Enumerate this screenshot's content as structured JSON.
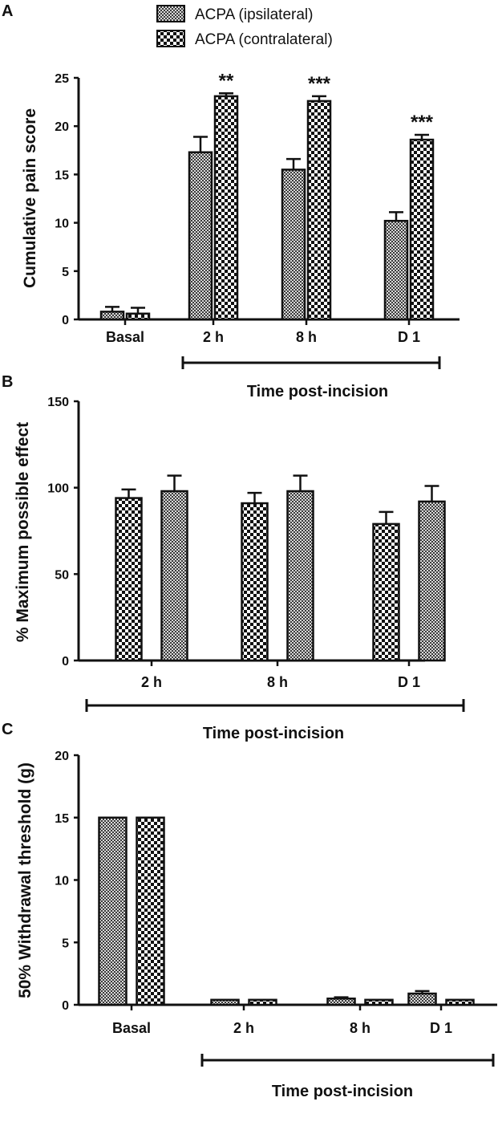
{
  "colors": {
    "ipsilateral_fill": "#8a8a8a",
    "contralateral_fill": "#2a2a2a",
    "bar_outline": "#111111",
    "axis": "#111111"
  },
  "chart_data": [
    {
      "panel": "A",
      "type": "bar",
      "categories": [
        "Basal",
        "2 h",
        "8 h",
        "D 1"
      ],
      "series": [
        {
          "name": "ACPA (ipsilateral)",
          "pattern": "fine-check",
          "values": [
            0.8,
            17.3,
            15.5,
            10.2
          ],
          "errors": [
            0.5,
            1.6,
            1.1,
            0.9
          ]
        },
        {
          "name": "ACPA (contralateral)",
          "pattern": "coarse-check",
          "values": [
            0.6,
            23.1,
            22.6,
            18.6
          ],
          "errors": [
            0.6,
            0.3,
            0.5,
            0.5
          ]
        }
      ],
      "significance": [
        "",
        "**",
        "***",
        "***"
      ],
      "ylabel": "Cumulative pain score",
      "xlabel": "Time post-incision",
      "ylim": [
        0,
        25
      ],
      "yticks": [
        0,
        5,
        10,
        15,
        20,
        25
      ],
      "legend": "top-center"
    },
    {
      "panel": "B",
      "type": "bar",
      "categories": [
        "2 h",
        "8 h",
        "D 1"
      ],
      "series": [
        {
          "name": "",
          "pattern": "coarse-check",
          "values": [
            94,
            91,
            79
          ],
          "errors": [
            5,
            6,
            7
          ]
        },
        {
          "name": "",
          "pattern": "fine-check",
          "values": [
            98,
            98,
            92
          ],
          "errors": [
            9,
            9,
            9
          ]
        }
      ],
      "ylabel": "% Maximum possible effect",
      "xlabel": "Time post-incision",
      "ylim": [
        0,
        150
      ],
      "yticks": [
        0,
        50,
        100,
        150
      ]
    },
    {
      "panel": "C",
      "type": "bar",
      "categories": [
        "Basal",
        "2 h",
        "8 h",
        "D 1"
      ],
      "series": [
        {
          "name": "",
          "pattern": "fine-check",
          "values": [
            15,
            0.4,
            0.5,
            0.9
          ],
          "errors": [
            0,
            0,
            0.1,
            0.2
          ]
        },
        {
          "name": "",
          "pattern": "coarse-check",
          "values": [
            15,
            0.4,
            0.4,
            0.4
          ],
          "errors": [
            0,
            0,
            0,
            0
          ]
        }
      ],
      "ylabel": "50% Withdrawal threshold (g)",
      "xlabel": "Time post-incision",
      "ylim": [
        0,
        20
      ],
      "yticks": [
        0,
        5,
        10,
        15,
        20
      ]
    }
  ]
}
